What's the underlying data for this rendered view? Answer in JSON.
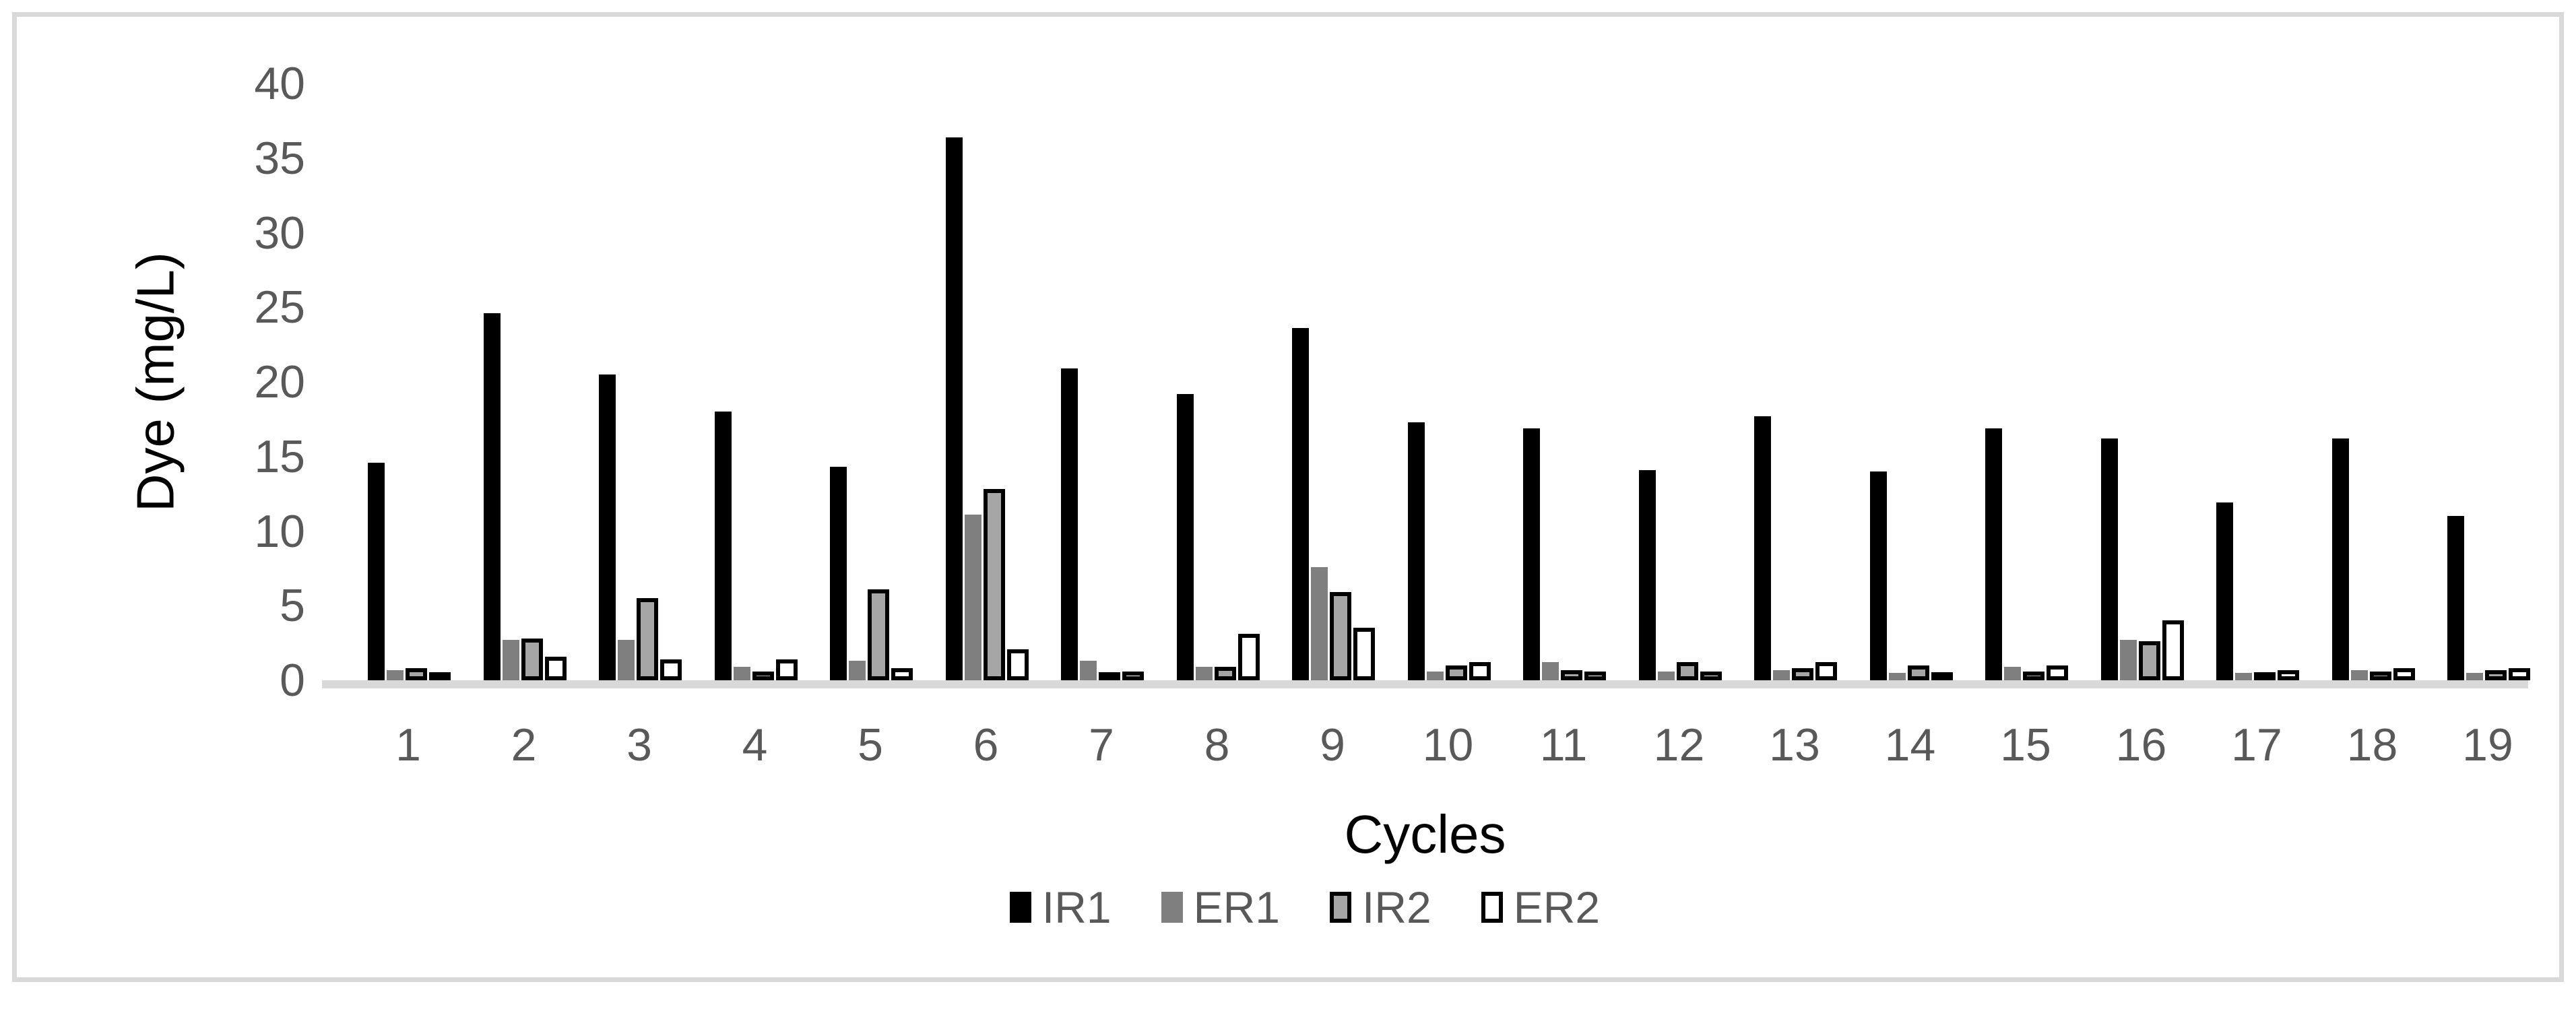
{
  "chart_data": {
    "type": "bar",
    "title": "",
    "xlabel": "Cycles",
    "ylabel": "Dye (mg/L)",
    "ylim": [
      0,
      40
    ],
    "yticks": [
      0,
      5,
      10,
      15,
      20,
      25,
      30,
      35,
      40
    ],
    "grid": false,
    "legend_position": "bottom-center",
    "categories": [
      "1",
      "2",
      "3",
      "4",
      "5",
      "6",
      "7",
      "8",
      "9",
      "10",
      "11",
      "12",
      "13",
      "14",
      "15",
      "16",
      "17",
      "18",
      "19"
    ],
    "series": [
      {
        "name": "IR1",
        "fill": "#000000",
        "border": "none",
        "values": [
          14.6,
          24.6,
          20.5,
          18.0,
          14.3,
          36.4,
          20.9,
          19.2,
          23.6,
          17.3,
          16.9,
          14.1,
          17.7,
          14.0,
          16.9,
          16.2,
          11.9,
          16.2,
          11.0
        ]
      },
      {
        "name": "ER1",
        "fill": "#7f7f7f",
        "border": "none",
        "values": [
          0.7,
          2.7,
          2.7,
          0.9,
          1.3,
          11.1,
          1.3,
          0.9,
          7.6,
          0.6,
          1.2,
          0.6,
          0.7,
          0.5,
          0.9,
          2.7,
          0.5,
          0.7,
          0.5
        ]
      },
      {
        "name": "IR2",
        "fill": "#a6a6a6",
        "border": "#000000",
        "values": [
          0.8,
          2.8,
          5.5,
          0.6,
          6.1,
          12.8,
          0.4,
          0.9,
          5.9,
          1.0,
          0.7,
          1.2,
          0.8,
          1.0,
          0.6,
          2.6,
          0.4,
          0.6,
          0.7
        ]
      },
      {
        "name": "ER2",
        "fill": "#ffffff",
        "border": "#000000",
        "values": [
          0.2,
          1.6,
          1.4,
          1.4,
          0.8,
          2.1,
          0.6,
          3.1,
          3.5,
          1.2,
          0.6,
          0.6,
          1.2,
          0.3,
          1.0,
          4.0,
          0.7,
          0.8,
          0.8
        ]
      }
    ],
    "colors": {
      "tick_text": "#595959",
      "axis_title_text": "#000000",
      "legend_text": "#595959",
      "axis_line": "#d9d9d9",
      "frame_border": "#d9d9d9",
      "background": "#ffffff"
    }
  }
}
